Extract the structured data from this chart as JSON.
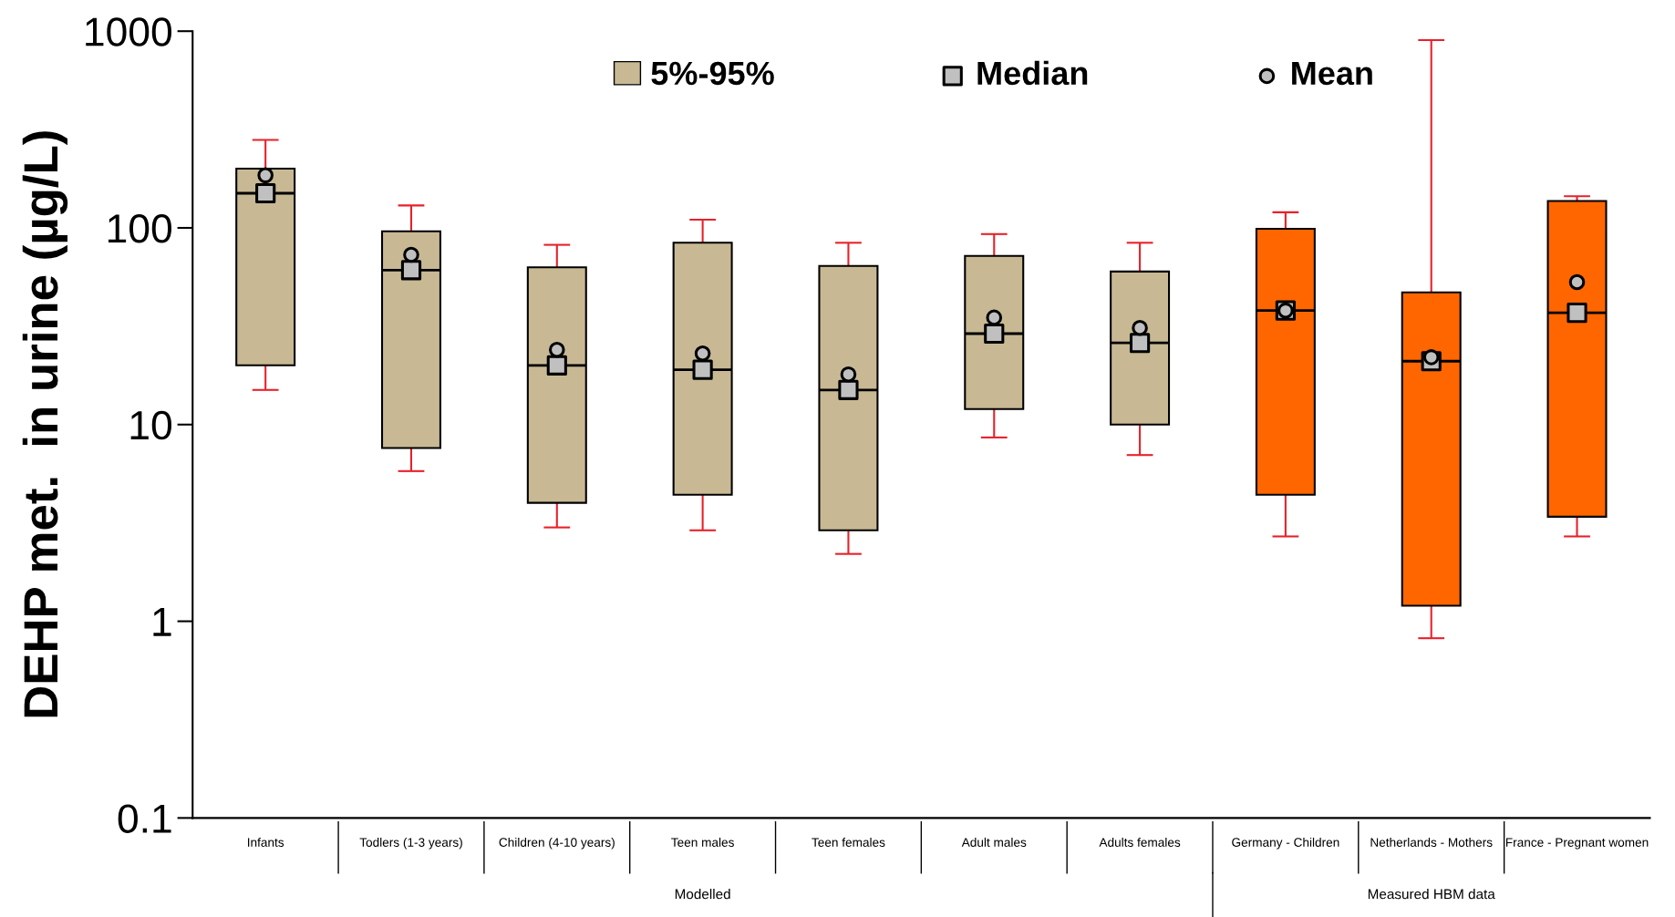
{
  "chart_data": {
    "type": "box",
    "ylabel": "DEHP met.  in urine (µg/L)",
    "categories": [
      "Infants",
      "Todlers (1-3 years)",
      "Children (4-10 years)",
      "Teen males",
      "Teen females",
      "Adult males",
      "Adults females",
      "Germany - Children",
      "Netherlands - Mothers",
      "France - Pregnant women"
    ],
    "series": [
      {
        "name": "5%-95%",
        "type": "box",
        "colors": [
          "#c8b994",
          "#c8b994",
          "#c8b994",
          "#c8b994",
          "#c8b994",
          "#c8b994",
          "#c8b994",
          "#ff6600",
          "#ff6600",
          "#ff6600"
        ],
        "boxes": [
          {
            "low": 15,
            "q1": 20,
            "median": 150,
            "q3": 200,
            "high": 280
          },
          {
            "low": 5.8,
            "q1": 7.6,
            "median": 61,
            "q3": 96,
            "high": 130
          },
          {
            "low": 3.0,
            "q1": 4.0,
            "median": 20,
            "q3": 63,
            "high": 82
          },
          {
            "low": 2.9,
            "q1": 4.4,
            "median": 19,
            "q3": 84,
            "high": 110
          },
          {
            "low": 2.2,
            "q1": 2.9,
            "median": 15,
            "q3": 64,
            "high": 84
          },
          {
            "low": 8.6,
            "q1": 12,
            "median": 29,
            "q3": 72,
            "high": 93
          },
          {
            "low": 7.0,
            "q1": 10,
            "median": 26,
            "q3": 60,
            "high": 84
          },
          {
            "low": 2.7,
            "q1": 4.4,
            "median": 38,
            "q3": 99,
            "high": 120
          },
          {
            "low": 0.82,
            "q1": 1.2,
            "median": 21,
            "q3": 47,
            "high": 900
          },
          {
            "low": 2.7,
            "q1": 3.4,
            "median": 37,
            "q3": 137,
            "high": 145
          }
        ]
      },
      {
        "name": "Median",
        "type": "scatter",
        "marker": "square",
        "color": "#c0c0c0",
        "x": [
          "Infants",
          "Todlers (1-3 years)",
          "Children (4-10 years)",
          "Teen males",
          "Teen females",
          "Adult males",
          "Adults females",
          "Germany - Children",
          "Netherlands - Mothers",
          "France - Pregnant women"
        ],
        "values": [
          150,
          61,
          20,
          19,
          15,
          29,
          26,
          38,
          21,
          37
        ]
      },
      {
        "name": "Mean",
        "type": "scatter",
        "marker": "circle",
        "color": "#c0c0c0",
        "x": [
          "Infants",
          "Todlers (1-3 years)",
          "Children (4-10 years)",
          "Teen males",
          "Teen females",
          "Adult males",
          "Adults females",
          "Germany - Children",
          "Netherlands - Mothers",
          "France - Pregnant women"
        ],
        "values": [
          185,
          73,
          24,
          23,
          18,
          35,
          31,
          38,
          22,
          53
        ]
      }
    ],
    "annotations": [
      "Modelled",
      "Measured HBM data"
    ],
    "log": true,
    "ylim": [
      0.1,
      1000
    ],
    "yticks": [
      0.1,
      1,
      10,
      100,
      1000
    ],
    "grid": false,
    "legend": "top"
  }
}
